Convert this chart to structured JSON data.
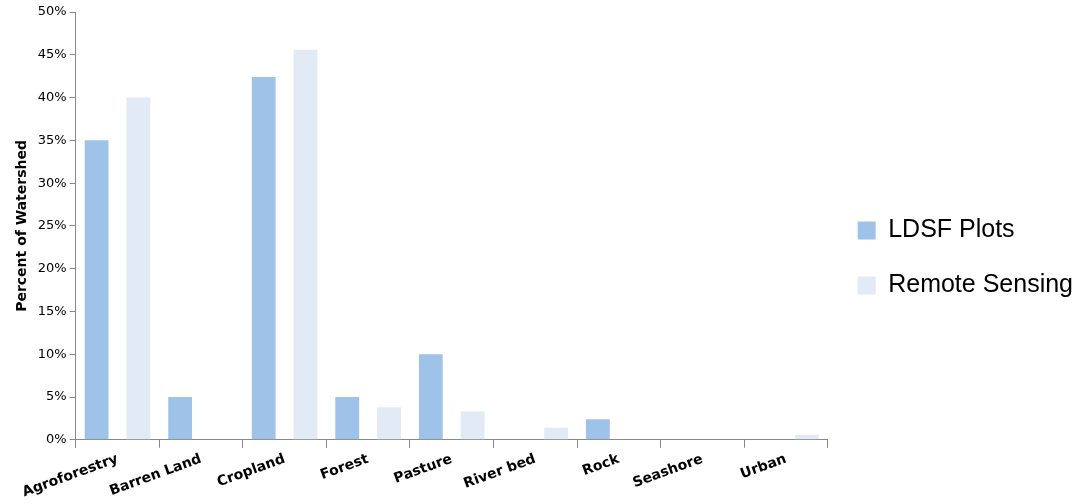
{
  "chart_data": {
    "type": "bar",
    "ylabel": "Percent of Watershed",
    "categories": [
      "Agroforestry",
      "Barren Land",
      "Cropland",
      "Forest",
      "Pasture",
      "River bed",
      "Rock",
      "Seashore",
      "Urban"
    ],
    "series": [
      {
        "name": "LDSF Plots",
        "color": "#9fc2e9",
        "values": [
          35,
          5,
          42.4,
          5,
          10,
          0,
          2.4,
          0,
          0
        ]
      },
      {
        "name": "Remote Sensing",
        "color": "#e2eaf5",
        "values": [
          40,
          0,
          45.6,
          3.8,
          3.3,
          1.4,
          0,
          0,
          0.6
        ]
      }
    ],
    "ylim": [
      0,
      50
    ],
    "yticks": [
      {
        "value": 0,
        "label": "0%"
      },
      {
        "value": 5,
        "label": "5%"
      },
      {
        "value": 10,
        "label": "10%"
      },
      {
        "value": 15,
        "label": "15%"
      },
      {
        "value": 20,
        "label": "20%"
      },
      {
        "value": 25,
        "label": "25%"
      },
      {
        "value": 30,
        "label": "30%"
      },
      {
        "value": 35,
        "label": "35%"
      },
      {
        "value": 40,
        "label": "40%"
      },
      {
        "value": 45,
        "label": "45%"
      },
      {
        "value": 50,
        "label": "50%"
      }
    ],
    "grid": false,
    "legend": "right"
  }
}
